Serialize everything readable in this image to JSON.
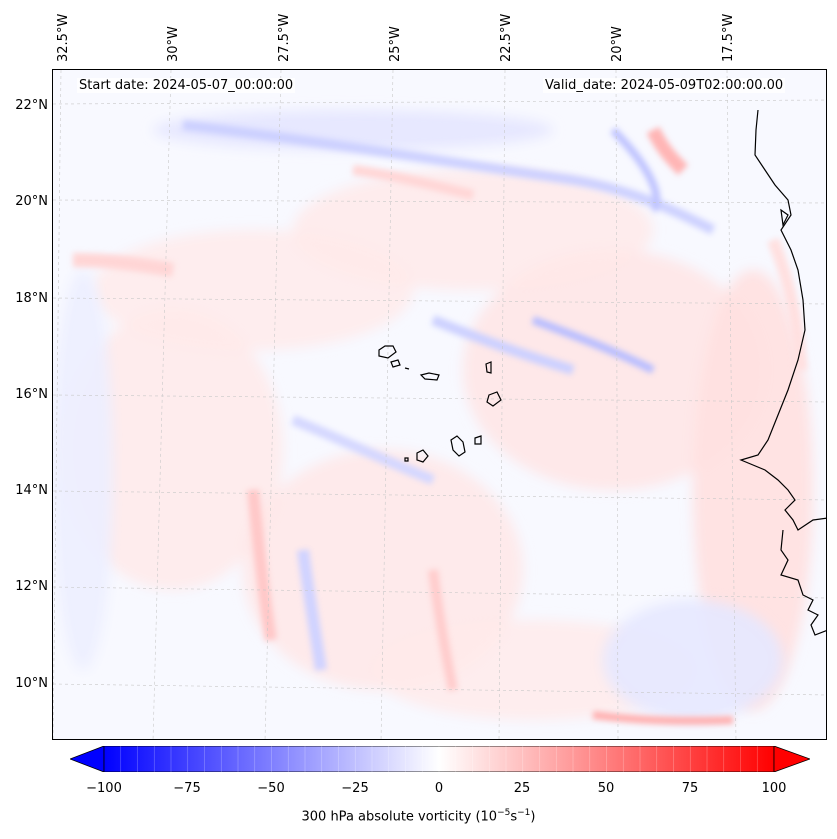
{
  "header": {
    "start_date": "Start date: 2024-05-07_00:00:00",
    "valid_date": "Valid_date: 2024-05-09T02:00:00.00"
  },
  "axes": {
    "lon_labels": [
      "32.5°W",
      "30°W",
      "27.5°W",
      "25°W",
      "22.5°W",
      "20°W",
      "17.5°W"
    ],
    "lat_labels": [
      "22°N",
      "20°N",
      "18°N",
      "16°N",
      "14°N",
      "12°N",
      "10°N"
    ]
  },
  "colorbar": {
    "ticks": [
      "−100",
      "−75",
      "−50",
      "−25",
      "0",
      "25",
      "50",
      "75",
      "100"
    ],
    "label_main": "300 hPa absolute vorticity (10",
    "label_exp1": "−5",
    "label_mid": "s",
    "label_exp2": "−1",
    "label_end": ")",
    "min": -100,
    "max": 100,
    "colors": {
      "neg": "#0000ff",
      "zero": "#ffffff",
      "pos": "#ff0000"
    }
  },
  "colors": {
    "coastline": "#000000",
    "gridline": "#bbbbbb",
    "background": "#f7f8ff"
  }
}
